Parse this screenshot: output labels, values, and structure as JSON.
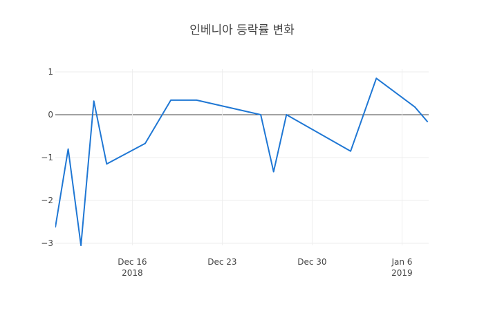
{
  "chart_data": {
    "type": "line",
    "title": "인베니아 등락률 변화",
    "xlabel": "",
    "ylabel": "",
    "x_range": [
      "2018-12-10",
      "2019-01-07"
    ],
    "ylim": [
      -3.2,
      1.1
    ],
    "grid": true,
    "legend": "none",
    "x_ticks": [
      {
        "date": "2018-12-16",
        "label": "Dec 16",
        "sublabel": "2018"
      },
      {
        "date": "2018-12-23",
        "label": "Dec 23",
        "sublabel": ""
      },
      {
        "date": "2018-12-30",
        "label": "Dec 30",
        "sublabel": ""
      },
      {
        "date": "2019-01-06",
        "label": "Jan 6",
        "sublabel": "2019"
      }
    ],
    "y_ticks": [
      {
        "value": 1,
        "label": "1"
      },
      {
        "value": 0,
        "label": "0"
      },
      {
        "value": -1,
        "label": "−1"
      },
      {
        "value": -2,
        "label": "−2"
      },
      {
        "value": -3,
        "label": "−3"
      }
    ],
    "series": [
      {
        "name": "",
        "color": "#1f77d4",
        "points": [
          {
            "x": "2018-12-10",
            "y": -2.63
          },
          {
            "x": "2018-12-11",
            "y": -0.8
          },
          {
            "x": "2018-12-12",
            "y": -3.05
          },
          {
            "x": "2018-12-13",
            "y": 0.32
          },
          {
            "x": "2018-12-14",
            "y": -1.15
          },
          {
            "x": "2018-12-17",
            "y": -0.67
          },
          {
            "x": "2018-12-19",
            "y": 0.34
          },
          {
            "x": "2018-12-21",
            "y": 0.34
          },
          {
            "x": "2018-12-26",
            "y": 0.0
          },
          {
            "x": "2018-12-27",
            "y": -1.33
          },
          {
            "x": "2018-12-28",
            "y": 0.0
          },
          {
            "x": "2019-01-02",
            "y": -0.85
          },
          {
            "x": "2019-01-04",
            "y": 0.85
          },
          {
            "x": "2019-01-07",
            "y": 0.18
          },
          {
            "x": "2019-01-08",
            "y": -0.17
          }
        ]
      }
    ]
  }
}
